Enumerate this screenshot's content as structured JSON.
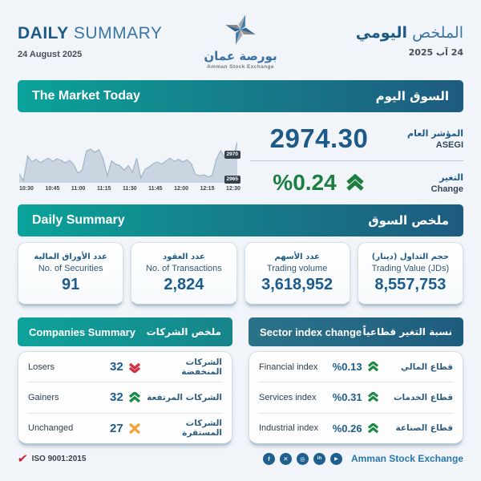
{
  "header": {
    "title_en_bold": "DAILY",
    "title_en_rest": "SUMMARY",
    "date_en": "24 August 2025",
    "title_ar_light": "الملخص",
    "title_ar_bold": "اليومي",
    "date_ar": "24 آب 2025",
    "logo": {
      "name_ar": "بورصة عمان",
      "name_en": "Amman Stock Exchange"
    }
  },
  "market_today": {
    "bar_en": "The Market Today",
    "bar_ar": "السوق اليوم",
    "index_value": "2974.30",
    "index_label_ar": "المؤشر العام",
    "index_label_en": "ASEGI",
    "change_value": "%0.24",
    "change_label_ar": "التغير",
    "change_label_en": "Change",
    "change_direction": "up"
  },
  "chart_data": {
    "type": "area",
    "title": "ASEGI intraday index",
    "x_ticks": [
      "10:30",
      "10:45",
      "11:00",
      "11:15",
      "11:30",
      "11:45",
      "12:00",
      "12:15",
      "12:30"
    ],
    "y_ticks": [
      2970,
      2965
    ],
    "ylim": [
      2964.8,
      2976.5
    ],
    "values": [
      2966.5,
      2965.2,
      2969.8,
      2968.7,
      2969.2,
      2968.6,
      2969.0,
      2969.4,
      2968.8,
      2969.3,
      2969.0,
      2968.5,
      2969.0,
      2968.2,
      2966.6,
      2967.2,
      2970.7,
      2971.1,
      2970.5,
      2971.0,
      2969.3,
      2966.1,
      2968.9,
      2968.3,
      2968.0,
      2967.2,
      2968.0,
      2966.8,
      2969.4,
      2965.7,
      2967.3,
      2967.8,
      2968.4,
      2968.7,
      2968.3,
      2968.9,
      2969.4,
      2968.8,
      2969.2,
      2968.7,
      2969.1,
      2968.4,
      2966.4,
      2966.1,
      2966.3,
      2965.9,
      2966.2,
      2969.2,
      2970.8,
      2969.7,
      2970.3,
      2969.6,
      2972.4
    ],
    "grid": false,
    "legend": "none"
  },
  "daily_summary": {
    "bar_en": "Daily Summary",
    "bar_ar": "ملخص السوق",
    "stats": [
      {
        "label_ar": "عدد الأوراق المالية",
        "label_en": "No. of Securities",
        "value": "91"
      },
      {
        "label_ar": "عدد العقود",
        "label_en": "No. of Transactions",
        "value": "2,824"
      },
      {
        "label_ar": "عدد الأسهم",
        "label_en": "Trading volume",
        "value": "3,618,952"
      },
      {
        "label_ar": "حجم التداول (دينار)",
        "label_en": "Trading Value (JDs)",
        "value": "8,557,753"
      }
    ]
  },
  "companies": {
    "header_en": "Companies Summary",
    "header_ar": "ملخص الشركات",
    "rows": [
      {
        "label_en": "Losers",
        "value": "32",
        "direction": "down",
        "label_ar": "الشركات المنخفضة"
      },
      {
        "label_en": "Gainers",
        "value": "32",
        "direction": "up",
        "label_ar": "الشركات المرتفعة"
      },
      {
        "label_en": "Unchanged",
        "value": "27",
        "direction": "flat",
        "label_ar": "الشركات المستقرة"
      }
    ]
  },
  "sectors": {
    "header_en": "Sector index change",
    "header_ar": "نسبة التغير قطاعياً",
    "rows": [
      {
        "label_en": "Financial index",
        "value": "%0.13",
        "direction": "up",
        "label_ar": "قطاع المالي"
      },
      {
        "label_en": "Services index",
        "value": "%0.31",
        "direction": "up",
        "label_ar": "قطاع الخدمات"
      },
      {
        "label_en": "Industrial index",
        "value": "%0.26",
        "direction": "up",
        "label_ar": "قطاع الصناعة"
      }
    ]
  },
  "footer": {
    "iso": "ISO 9001:2015",
    "brand": "Amman Stock Exchange",
    "social": [
      {
        "name": "facebook",
        "glyph": "f"
      },
      {
        "name": "x-twitter",
        "glyph": "✕"
      },
      {
        "name": "instagram",
        "glyph": "◎"
      },
      {
        "name": "linkedin",
        "glyph": "in"
      },
      {
        "name": "youtube",
        "glyph": "▶"
      }
    ]
  },
  "colors": {
    "teal_accent": "#0aa39a",
    "navy_accent": "#1d5b80",
    "value_blue": "#1b5c8c",
    "gain_green": "#1c7f41",
    "loss_red": "#d32f3f",
    "flat_orange": "#f0a23c",
    "background": "#f1f4f8"
  }
}
